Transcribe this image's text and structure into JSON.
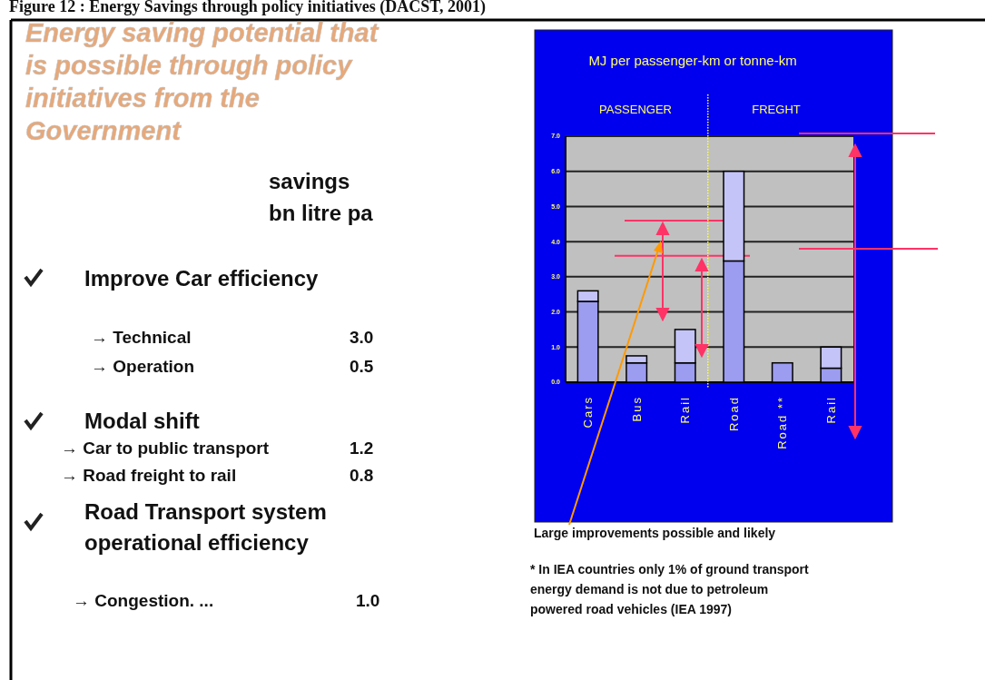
{
  "chart_data": [
    {
      "type": "other",
      "title": "Energy saving potential that is possible through policy initiatives from the Government",
      "annotations": [
        "savings",
        "bn litre pa",
        "Improve Car efficiency",
        "→ Technical",
        "3.0",
        "→ Operation",
        "0.5",
        "Modal shift",
        "→ Car to public transport",
        "1.2",
        "→ Road freight to rail",
        "0.8",
        "Road Transport system",
        "operational efficiency",
        "→ Congestion. ...",
        "1.0",
        "Figure 12 : Energy Savings through policy initiatives (DACST, 2001)"
      ]
    },
    {
      "type": "bar",
      "title": "MJ per passenger-km or tonne-km",
      "stacked": true,
      "grid": "y",
      "categories": [
        "Cars",
        "Bus",
        "Rail",
        "Road",
        "Road **",
        "Rail"
      ],
      "series": [
        {
          "color": "#9c9cf0",
          "values": [
            2.3,
            0.55,
            0.55,
            3.45,
            0.55,
            0.4
          ]
        },
        {
          "color": "#c4c4f8",
          "values": [
            0.3,
            0.2,
            0.95,
            2.55,
            null,
            0.6
          ]
        }
      ],
      "ref_lines": [
        {
          "axis": "y",
          "value": 4.6,
          "color": "#ff3366"
        },
        {
          "axis": "y",
          "value": 3.6,
          "color": "#ff3366"
        },
        {
          "axis": "y",
          "value": 3.8,
          "color": "#ff3366"
        }
      ],
      "ylim": [
        0,
        7
      ],
      "yticks": [
        {
          "value": 0,
          "label": "0.0"
        },
        {
          "value": 1,
          "label": "1.0"
        },
        {
          "value": 2,
          "label": "2.0"
        },
        {
          "value": 3,
          "label": "3.0"
        },
        {
          "value": 4,
          "label": "4.0"
        },
        {
          "value": 5,
          "label": "5.0"
        },
        {
          "value": 6,
          "label": "6.0"
        },
        {
          "value": 7,
          "label": "7.0"
        }
      ],
      "annotations": [
        "PASSENGER",
        "FREGHT",
        "Large improvements possible and likely",
        "* In IEA countries only 1% of ground transport",
        "energy demand is not due to petroleum",
        "powered road vehicles (IEA 1997)"
      ]
    }
  ]
}
